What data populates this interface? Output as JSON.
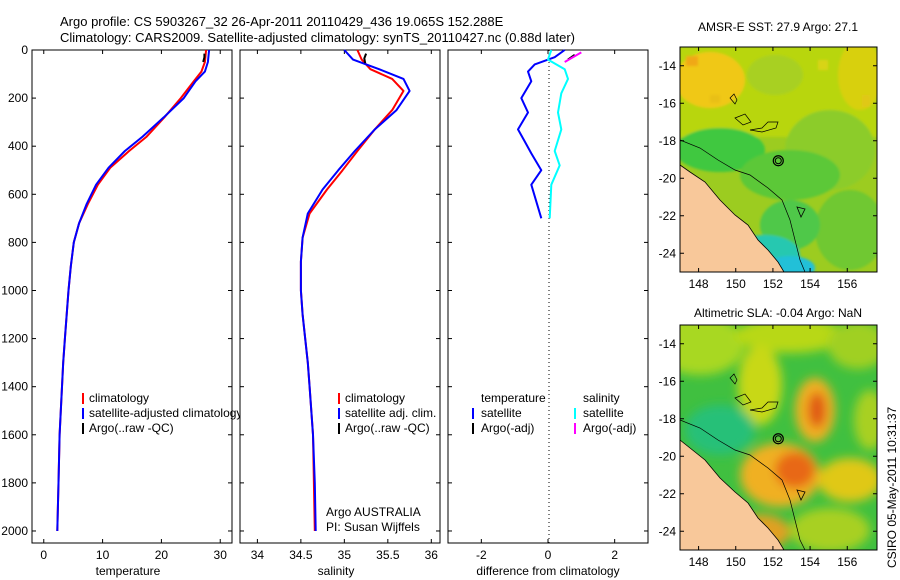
{
  "header": {
    "title_line1": "Argo profile: CS 5903267_32 26-Apr-2011 20110429_436 19.065S 152.288E",
    "title_line2": "Climatology: CARS2009. Satellite-adjusted climatology: synTS_20110427.nc (0.88d later)"
  },
  "credit": {
    "line1": "Argo AUSTRALIA",
    "line2": "PI: Susan Wijffels"
  },
  "timestamp": "CSIRO 05-May-2011 10:31:37",
  "colors": {
    "climatology": "#ff0000",
    "satellite": "#0000ff",
    "argo": "#000000",
    "salinity_satellite": "#00ffff",
    "salinity_argo": "#ff00ff",
    "land": "#f8c89a"
  },
  "chart_data": [
    {
      "type": "line",
      "id": "temperature",
      "xlabel": "temperature",
      "ylabel": "",
      "xlim": [
        -2,
        32
      ],
      "ylim": [
        2050,
        0
      ],
      "xticks": [
        0,
        10,
        20,
        30
      ],
      "yticks": [
        0,
        200,
        400,
        600,
        800,
        1000,
        1200,
        1400,
        1600,
        1800,
        2000
      ],
      "legend": [
        "climatology",
        "satellite-adjusted climatology",
        "Argo(..raw -QC)"
      ],
      "series": [
        {
          "name": "climatology",
          "color": "#ff0000",
          "x": [
            27.6,
            27.4,
            26.8,
            25.5,
            23.3,
            20.5,
            17.5,
            14.5,
            11.3,
            9.2,
            7.5,
            6.0,
            5.1,
            4.6,
            4.2,
            3.9,
            3.6,
            3.3,
            3.1,
            2.9,
            2.7,
            2.5,
            2.3
          ],
          "y": [
            0,
            50,
            90,
            130,
            200,
            280,
            360,
            420,
            490,
            560,
            640,
            720,
            800,
            900,
            1000,
            1100,
            1200,
            1300,
            1400,
            1500,
            1600,
            1800,
            2000
          ]
        },
        {
          "name": "satellite-adjusted climatology",
          "color": "#0000ff",
          "x": [
            28.1,
            27.9,
            27.4,
            25.8,
            23.8,
            20.4,
            16.8,
            13.8,
            11.0,
            8.9,
            7.3,
            6.0,
            5.1,
            4.6,
            4.2,
            3.9,
            3.6,
            3.3,
            3.1,
            2.9,
            2.7,
            2.5,
            2.3
          ],
          "y": [
            0,
            50,
            90,
            130,
            200,
            280,
            360,
            420,
            490,
            560,
            640,
            720,
            800,
            900,
            1000,
            1100,
            1200,
            1300,
            1400,
            1500,
            1600,
            1800,
            2000
          ]
        },
        {
          "name": "Argo(..raw -QC)",
          "color": "#000000",
          "x": [
            27.3,
            27.3,
            27.1
          ],
          "y": [
            15,
            30,
            50
          ]
        }
      ]
    },
    {
      "type": "line",
      "id": "salinity",
      "xlabel": "salinity",
      "ylabel": "",
      "xlim": [
        33.8,
        36.1
      ],
      "ylim": [
        2050,
        0
      ],
      "xticks": [
        34,
        34.5,
        35,
        35.5,
        36
      ],
      "legend": [
        "climatology",
        "satellite adj. clim.",
        "Argo(..raw -QC)"
      ],
      "series": [
        {
          "name": "climatology",
          "color": "#ff0000",
          "x": [
            35.15,
            35.2,
            35.3,
            35.55,
            35.68,
            35.55,
            35.35,
            35.15,
            34.98,
            34.8,
            34.6,
            34.52,
            34.5,
            34.5,
            34.52,
            34.55,
            34.58,
            34.6,
            34.62,
            34.64,
            34.65,
            34.66
          ],
          "y": [
            0,
            40,
            80,
            120,
            170,
            250,
            330,
            420,
            500,
            580,
            680,
            780,
            880,
            1000,
            1100,
            1200,
            1300,
            1400,
            1500,
            1600,
            1800,
            2000
          ]
        },
        {
          "name": "satellite adj. clim.",
          "color": "#0000ff",
          "x": [
            35.0,
            35.1,
            35.4,
            35.68,
            35.75,
            35.6,
            35.35,
            35.12,
            34.93,
            34.75,
            34.58,
            34.52,
            34.5,
            34.5,
            34.52,
            34.55,
            34.58,
            34.6,
            34.62,
            34.64,
            34.66,
            34.67
          ],
          "y": [
            0,
            40,
            80,
            120,
            170,
            250,
            330,
            420,
            500,
            580,
            680,
            780,
            880,
            1000,
            1100,
            1200,
            1300,
            1400,
            1500,
            1600,
            1800,
            2000
          ]
        },
        {
          "name": "Argo(..raw -QC)",
          "color": "#000000",
          "x": [
            35.25,
            35.23,
            35.24
          ],
          "y": [
            15,
            35,
            55
          ]
        }
      ]
    },
    {
      "type": "line",
      "id": "difference",
      "xlabel": "difference from climatology",
      "ylabel": "",
      "xlim": [
        -3,
        3
      ],
      "ylim": [
        2050,
        0
      ],
      "xticks": [
        -2,
        0,
        2
      ],
      "legend": [
        "temperature",
        "satellite",
        "Argo(-adj)",
        "salinity",
        "satellite",
        "Argo(-adj)"
      ],
      "series": [
        {
          "name": "temperature satellite",
          "color": "#0000ff",
          "x": [
            0.5,
            0.2,
            -0.4,
            -0.6,
            -0.5,
            -0.8,
            -0.6,
            -0.9,
            -0.7,
            -0.5,
            -0.2,
            -0.5,
            -0.2
          ],
          "y": [
            0,
            30,
            60,
            90,
            130,
            200,
            260,
            330,
            380,
            430,
            500,
            560,
            700
          ]
        },
        {
          "name": "salinity satellite",
          "color": "#00ffff",
          "x": [
            0.1,
            0.0,
            0.5,
            0.6,
            0.4,
            0.3,
            0.4,
            0.2,
            0.35,
            0.1,
            0.05
          ],
          "y": [
            0,
            40,
            80,
            120,
            180,
            260,
            330,
            420,
            480,
            560,
            700
          ]
        },
        {
          "name": "temperature Argo(-adj)",
          "color": "#000000",
          "x": [
            0.8,
            0.6
          ],
          "y": [
            20,
            40
          ]
        },
        {
          "name": "salinity Argo(-adj)",
          "color": "#ff00ff",
          "x": [
            1.0,
            0.5
          ],
          "y": [
            10,
            50
          ]
        }
      ]
    },
    {
      "type": "heatmap",
      "id": "sst-map",
      "title": "AMSR-E SST: 27.9 Argo: 27.1",
      "xlim": [
        147,
        157.6
      ],
      "ylim": [
        -25,
        -13
      ],
      "xticks": [
        148,
        150,
        152,
        154,
        156
      ],
      "yticks": [
        -14,
        -16,
        -18,
        -20,
        -22,
        -24
      ],
      "argo_position": [
        152.288,
        -19.065
      ]
    },
    {
      "type": "heatmap",
      "id": "sla-map",
      "title": "Altimetric SLA: -0.04 Argo: NaN",
      "xlim": [
        147,
        157.6
      ],
      "ylim": [
        -25,
        -13
      ],
      "xticks": [
        148,
        150,
        152,
        154,
        156
      ],
      "yticks": [
        -14,
        -16,
        -18,
        -20,
        -22,
        -24
      ],
      "argo_position": [
        152.288,
        -19.065
      ]
    }
  ]
}
